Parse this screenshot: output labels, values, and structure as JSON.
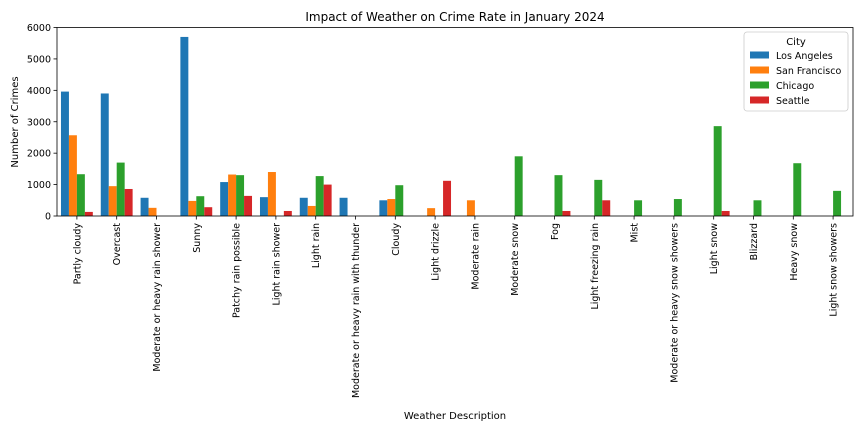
{
  "chart_data": {
    "type": "bar",
    "title": "Impact of Weather on Crime Rate in January 2024",
    "xlabel": "Weather Description",
    "ylabel": "Number of Crimes",
    "ylim": [
      0,
      6000
    ],
    "yticks": [
      0,
      1000,
      2000,
      3000,
      4000,
      5000,
      6000
    ],
    "grid": false,
    "legend": {
      "title": "City",
      "placement": "top-right"
    },
    "categories": [
      "Partly cloudy",
      "Overcast",
      "Moderate or heavy rain shower",
      "Sunny",
      "Patchy rain possible",
      "Light rain shower",
      "Light rain",
      "Moderate or heavy rain with thunder",
      "Cloudy",
      "Light drizzle",
      "Moderate rain",
      "Moderate snow",
      "Fog",
      "Light freezing rain",
      "Mist",
      "Moderate or heavy snow showers",
      "Light snow",
      "Blizzard",
      "Heavy snow",
      "Light snow showers"
    ],
    "series": [
      {
        "name": "Los Angeles",
        "color": "#1f77b4",
        "values": [
          3960,
          3900,
          580,
          5700,
          1080,
          600,
          580,
          580,
          500,
          null,
          null,
          null,
          null,
          null,
          null,
          null,
          null,
          null,
          null,
          null
        ]
      },
      {
        "name": "San Francisco",
        "color": "#ff7f0e",
        "values": [
          2570,
          950,
          260,
          480,
          1320,
          1400,
          320,
          null,
          540,
          250,
          500,
          null,
          null,
          null,
          null,
          null,
          null,
          null,
          null,
          null
        ]
      },
      {
        "name": "Chicago",
        "color": "#2ca02c",
        "values": [
          1330,
          1700,
          null,
          630,
          1300,
          null,
          1270,
          null,
          980,
          null,
          null,
          1900,
          1300,
          1150,
          500,
          540,
          2860,
          500,
          1680,
          800
        ]
      },
      {
        "name": "Seattle",
        "color": "#d62728",
        "values": [
          130,
          860,
          null,
          280,
          640,
          160,
          1000,
          null,
          null,
          1120,
          null,
          null,
          160,
          500,
          null,
          null,
          160,
          null,
          null,
          null
        ]
      }
    ]
  }
}
